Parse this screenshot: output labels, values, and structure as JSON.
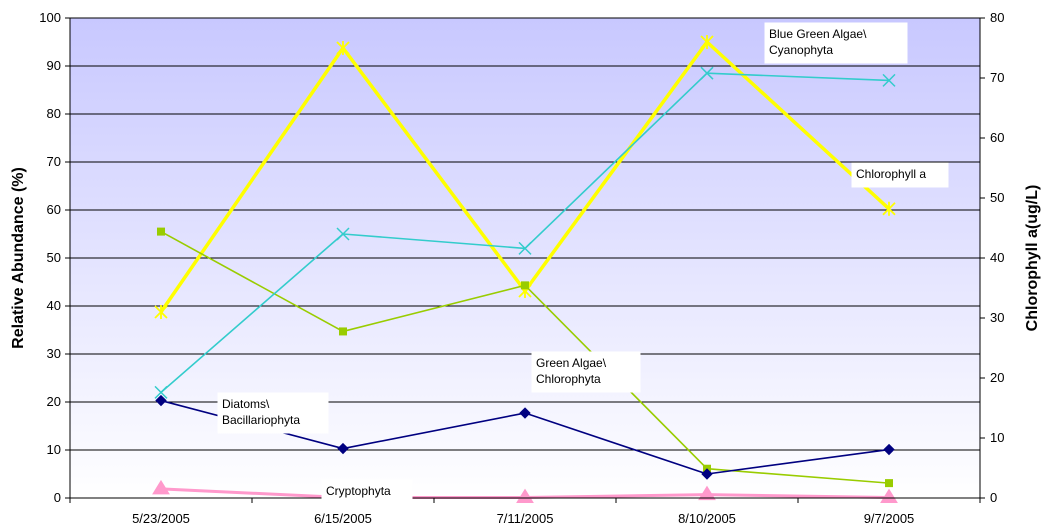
{
  "chart_data": {
    "type": "line",
    "categories": [
      "5/23/2005",
      "6/15/2005",
      "7/11/2005",
      "8/10/2005",
      "9/7/2005"
    ],
    "ylabel": "Relative Abundance (%)",
    "y2label": "Chlorophyll a(ug/L)",
    "ylim": [
      0,
      100
    ],
    "y2lim": [
      0,
      80
    ],
    "yticks": [
      "0",
      "10",
      "20",
      "30",
      "40",
      "50",
      "60",
      "70",
      "80",
      "90",
      "100"
    ],
    "y2ticks": [
      "0",
      "10",
      "20",
      "30",
      "40",
      "50",
      "60",
      "70",
      "80"
    ],
    "grid": true,
    "plot_background": "gradient #c8c8ff to #ffffff",
    "series": [
      {
        "name_lines": [
          "Diatoms\\",
          "Bacillariophyta"
        ],
        "axis": "left",
        "color": "#000080",
        "marker": "diamond",
        "values": [
          20.3,
          10.3,
          17.7,
          5.0,
          10.1
        ]
      },
      {
        "name_lines": [
          "Green Algae\\",
          "Chlorophyta"
        ],
        "axis": "left",
        "color": "#99cc00",
        "marker": "square",
        "values": [
          55.5,
          34.7,
          44.3,
          6.1,
          3.1
        ]
      },
      {
        "name_lines": [
          "Blue Green Algae\\",
          "Cyanophyta"
        ],
        "axis": "left",
        "color": "#33cccc",
        "marker": "x",
        "values": [
          22.0,
          55.0,
          52.0,
          88.5,
          87.0
        ]
      },
      {
        "name_lines": [
          "Cryptophyta"
        ],
        "axis": "left",
        "color": "#ff99cc",
        "marker": "triangle",
        "values": [
          1.9,
          0.1,
          0.1,
          0.7,
          0.1
        ]
      },
      {
        "name_lines": [
          "Chlorophyll a"
        ],
        "axis": "right",
        "color": "#ffff00",
        "marker": "star",
        "values": [
          31.0,
          75.0,
          34.5,
          76.0,
          48.2
        ]
      }
    ]
  }
}
